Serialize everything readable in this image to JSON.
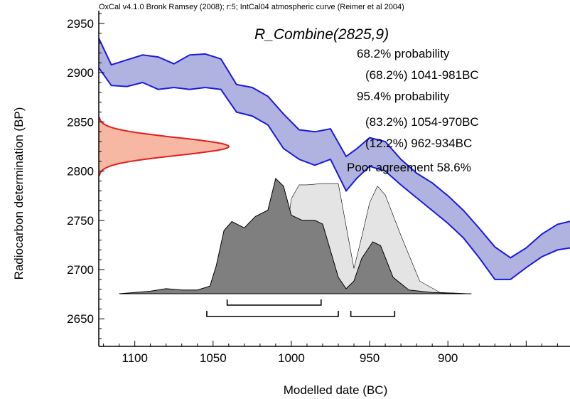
{
  "header": "OxCal v4.1.0 Bronk Ramsey (2008); r:5; IntCal04 atmospheric curve (Reimer et al 2004)",
  "colors": {
    "curve_fill": "#b0b2df",
    "curve_line": "#1a1adc",
    "measurement_fill": "#f6b8a3",
    "measurement_line": "#e51c1c",
    "prior_fill": "#e4e4e4",
    "posterior_fill": "#7f7f7f",
    "bracket": "#000000"
  },
  "chart_data": {
    "type": "area",
    "xlabel": "Modelled date (BC)",
    "ylabel": "Radiocarbon determination (BP)",
    "xlim": [
      1123,
      822
    ],
    "ylim": [
      2622,
      2963
    ],
    "x_ticks": [
      1100,
      1050,
      1000,
      950,
      900
    ],
    "y_ticks": [
      2650,
      2700,
      2750,
      2800,
      2850,
      2900,
      2950
    ],
    "annotations": {
      "title": "R_Combine(2825,9)",
      "lines": [
        "68.2% probability",
        "(68.2%) 1041-981BC",
        "95.4% probability",
        "(83.2%) 1054-970BC",
        "(12.2%) 962-934BC",
        "Poor agreement 58.6%"
      ]
    },
    "calibration_curve": {
      "x": [
        1123,
        1115,
        1105,
        1095,
        1085,
        1075,
        1065,
        1055,
        1045,
        1035,
        1025,
        1015,
        1005,
        995,
        985,
        975,
        965,
        958,
        950,
        940,
        930,
        920,
        910,
        900,
        890,
        880,
        870,
        860,
        850,
        840,
        830,
        822
      ],
      "upper": [
        2935,
        2908,
        2913,
        2918,
        2916,
        2909,
        2918,
        2919,
        2914,
        2888,
        2885,
        2876,
        2858,
        2842,
        2840,
        2843,
        2815,
        2823,
        2834,
        2830,
        2812,
        2798,
        2788,
        2775,
        2760,
        2742,
        2723,
        2712,
        2722,
        2736,
        2746,
        2749
      ],
      "lower": [
        2905,
        2887,
        2886,
        2890,
        2883,
        2885,
        2883,
        2885,
        2883,
        2860,
        2856,
        2847,
        2823,
        2812,
        2806,
        2812,
        2780,
        2793,
        2805,
        2800,
        2786,
        2773,
        2760,
        2747,
        2732,
        2712,
        2690,
        2690,
        2702,
        2713,
        2720,
        2722
      ]
    },
    "radiocarbon_measurement": {
      "mean": 2825,
      "error": 9,
      "y_range": [
        2795,
        2855
      ]
    },
    "prior_distribution": {
      "x": [
        1110,
        1090,
        1070,
        1055,
        1040,
        1025,
        1012,
        1005,
        1000,
        995,
        990,
        980,
        970,
        960,
        955,
        950,
        945,
        940,
        930,
        918,
        905,
        885
      ],
      "values": [
        0,
        0,
        0,
        0,
        0.01,
        0.02,
        0.05,
        0.3,
        0.75,
        0.86,
        0.86,
        0.87,
        0.87,
        0.2,
        0.45,
        0.72,
        0.85,
        0.78,
        0.46,
        0.1,
        0.01,
        0
      ]
    },
    "posterior_distribution": {
      "x": [
        1110,
        1100,
        1090,
        1080,
        1070,
        1060,
        1052,
        1048,
        1043,
        1038,
        1030,
        1023,
        1015,
        1010,
        1005,
        1000,
        993,
        985,
        980,
        970,
        965,
        960,
        955,
        948,
        943,
        935,
        925,
        910,
        890,
        885
      ],
      "values": [
        0,
        0.01,
        0.02,
        0.04,
        0.03,
        0.03,
        0.06,
        0.22,
        0.5,
        0.57,
        0.52,
        0.61,
        0.66,
        0.91,
        0.85,
        0.62,
        0.58,
        0.58,
        0.55,
        0.13,
        0.04,
        0.1,
        0.28,
        0.41,
        0.38,
        0.13,
        0.03,
        0.01,
        0,
        0
      ]
    },
    "ranges_68": [
      [
        1041,
        981
      ]
    ],
    "ranges_95": [
      [
        1054,
        970
      ],
      [
        962,
        934
      ]
    ]
  }
}
